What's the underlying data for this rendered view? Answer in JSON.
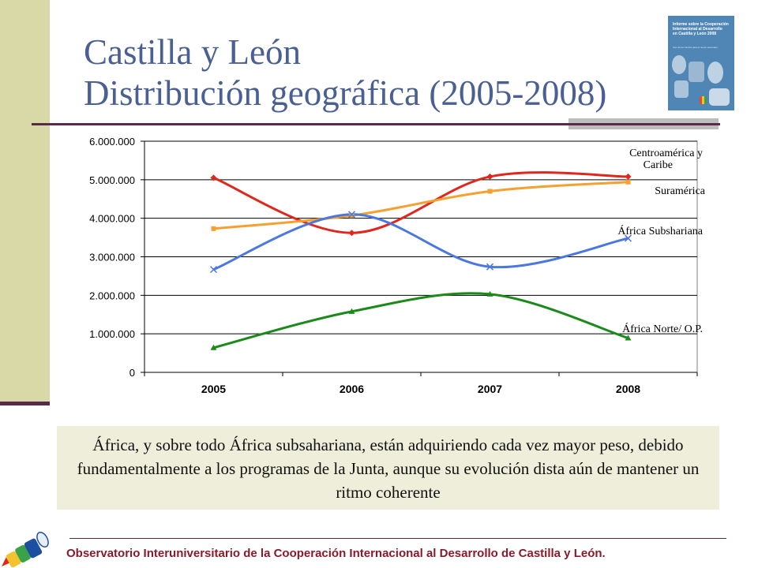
{
  "slide": {
    "title_line1": "Castilla y León",
    "title_line2": "Distribución geográfica (2005-2008)",
    "caption": "África, y sobre todo África subsahariana, están adquiriendo cada vez mayor peso, debido fundamentalmente a los programas de la Junta, aunque su evolución dista aún de mantener un ritmo coherente",
    "footer": "Observatorio Interuniversitario de la Cooperación Internacional al Desarrollo de Castilla y León.",
    "cover_text": "Informe sobre la Cooperación\nInternacional al Desarrollo\nen Castilla y León 2008",
    "cover_subtitle": "Uso de los fondos para el nuevo escenario"
  },
  "colors": {
    "title": "#4a5f92",
    "left_bar": "#d9d9a8",
    "accent_rule": "#5a2a4a",
    "caption_bg": "#eeeeda",
    "footer_text": "#8a1a2a",
    "cover_bg": "#4f86b6"
  },
  "chart_data": {
    "type": "line",
    "smooth": true,
    "categories": [
      "2005",
      "2006",
      "2007",
      "2008"
    ],
    "ylim": [
      0,
      6000000
    ],
    "yticks": [
      0,
      1000000,
      2000000,
      3000000,
      4000000,
      5000000,
      6000000
    ],
    "ytick_labels": [
      "0",
      "1.000.000",
      "2.000.000",
      "3.000.000",
      "4.000.000",
      "5.000.000",
      "6.000.000"
    ],
    "grid": true,
    "series": [
      {
        "name": "Centroamérica y Caribe",
        "color": "#e0271d",
        "marker": "diamond",
        "values": [
          5050000,
          3620000,
          5080000,
          5080000
        ]
      },
      {
        "name": "Suramérica",
        "color": "#f5a030",
        "marker": "square",
        "values": [
          3730000,
          4070000,
          4700000,
          4940000
        ]
      },
      {
        "name": "África Subshariana",
        "color": "#4a78e0",
        "marker": "x",
        "values": [
          2670000,
          4100000,
          2740000,
          3480000
        ]
      },
      {
        "name": "África Norte/ O.P.",
        "color": "#1a8a1a",
        "marker": "triangle",
        "values": [
          640000,
          1580000,
          2030000,
          890000
        ]
      }
    ]
  }
}
